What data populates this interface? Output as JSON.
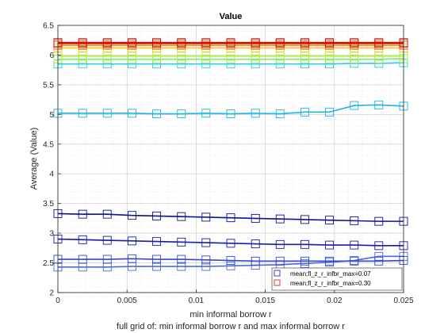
{
  "chart_data": {
    "type": "line",
    "title": "Value",
    "xlabel": "min informal borrow r",
    "ylabel": "Average (Value)",
    "footer": "full grid of: min informal borrow r and max informal borrow r",
    "xlim": [
      0,
      0.025
    ],
    "ylim": [
      2,
      6.5
    ],
    "xticks": [
      "0",
      "0.005",
      "0.01",
      "0.015",
      "0.02",
      "0.025"
    ],
    "yticks": [
      "2",
      "2.5",
      "3",
      "3.5",
      "4",
      "4.5",
      "5",
      "5.5",
      "6",
      "6.5"
    ],
    "grid": true,
    "minor_grid": true,
    "legend_position": "bottom-right",
    "legend": [
      {
        "label": "mean;fl_z_r_infbr_max=0.07",
        "color": "#2a2acd"
      },
      {
        "label": "mean;fl_z_r_infbr_max=0.30",
        "color": "#d62a2a"
      }
    ],
    "x": [
      0,
      0.00179,
      0.00357,
      0.00536,
      0.00714,
      0.00893,
      0.01071,
      0.0125,
      0.01429,
      0.01607,
      0.01786,
      0.01964,
      0.02143,
      0.02321,
      0.025
    ],
    "series": [
      {
        "color": "#4d6bd8",
        "values": [
          2.43,
          2.43,
          2.43,
          2.44,
          2.44,
          2.44,
          2.44,
          2.45,
          2.46,
          2.47,
          2.49,
          2.51,
          2.54,
          2.61,
          2.61
        ]
      },
      {
        "color": "#3548c8",
        "values": [
          2.56,
          2.56,
          2.56,
          2.57,
          2.56,
          2.56,
          2.55,
          2.54,
          2.53,
          2.53,
          2.53,
          2.53,
          2.53,
          2.53,
          2.54
        ]
      },
      {
        "color": "#1a1aac",
        "values": [
          2.9,
          2.89,
          2.88,
          2.87,
          2.86,
          2.85,
          2.84,
          2.83,
          2.82,
          2.81,
          2.81,
          2.8,
          2.8,
          2.79,
          2.79
        ]
      },
      {
        "color": "#101092",
        "values": [
          3.33,
          3.32,
          3.32,
          3.3,
          3.29,
          3.28,
          3.27,
          3.26,
          3.25,
          3.24,
          3.23,
          3.22,
          3.21,
          3.2,
          3.2
        ]
      },
      {
        "color": "#1cb3ea",
        "values": [
          5.02,
          5.02,
          5.02,
          5.02,
          5.01,
          5.01,
          5.02,
          5.01,
          5.02,
          5.01,
          5.04,
          5.04,
          5.15,
          5.16,
          5.14
        ]
      },
      {
        "color": "#2ad0e0",
        "values": [
          5.85,
          5.85,
          5.85,
          5.85,
          5.85,
          5.85,
          5.85,
          5.85,
          5.85,
          5.85,
          5.85,
          5.85,
          5.86,
          5.86,
          5.87
        ]
      },
      {
        "color": "#7de87a",
        "values": [
          5.93,
          5.93,
          5.93,
          5.93,
          5.93,
          5.93,
          5.93,
          5.93,
          5.93,
          5.93,
          5.93,
          5.93,
          5.93,
          5.93,
          5.94
        ]
      },
      {
        "color": "#b8ef3a",
        "values": [
          5.98,
          5.98,
          5.98,
          5.98,
          5.98,
          5.98,
          5.98,
          5.98,
          5.98,
          5.98,
          5.98,
          5.98,
          5.98,
          5.98,
          5.98
        ]
      },
      {
        "color": "#f5c825",
        "values": [
          6.12,
          6.12,
          6.12,
          6.12,
          6.12,
          6.12,
          6.12,
          6.12,
          6.12,
          6.12,
          6.12,
          6.12,
          6.12,
          6.12,
          6.12
        ]
      },
      {
        "color": "#f08a1a",
        "values": [
          6.16,
          6.16,
          6.16,
          6.16,
          6.16,
          6.16,
          6.16,
          6.16,
          6.16,
          6.16,
          6.16,
          6.16,
          6.16,
          6.16,
          6.16
        ]
      },
      {
        "color": "#e8341a",
        "values": [
          6.19,
          6.19,
          6.19,
          6.19,
          6.19,
          6.19,
          6.19,
          6.19,
          6.19,
          6.19,
          6.19,
          6.19,
          6.19,
          6.19,
          6.19
        ]
      },
      {
        "color": "#c80c0c",
        "values": [
          6.21,
          6.21,
          6.21,
          6.21,
          6.21,
          6.21,
          6.21,
          6.21,
          6.21,
          6.21,
          6.21,
          6.21,
          6.21,
          6.21,
          6.21
        ]
      }
    ]
  }
}
